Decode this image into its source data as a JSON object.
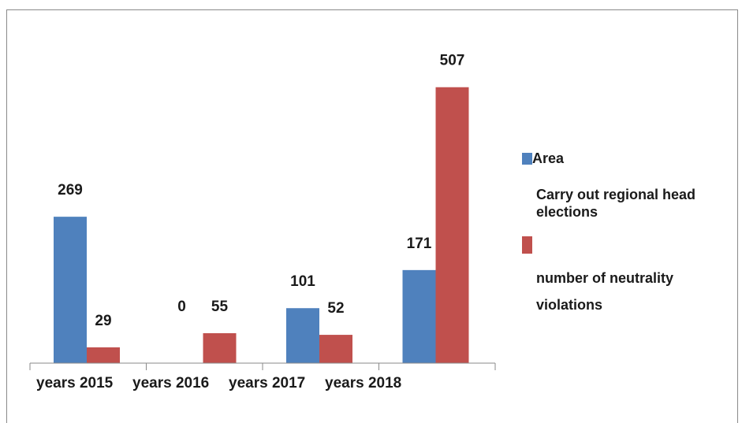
{
  "chart_data": {
    "type": "bar",
    "categories": [
      "years 2015",
      "years 2016",
      "years 2017",
      "years 2018"
    ],
    "series": [
      {
        "name": "Area",
        "values": [
          269,
          0,
          101,
          171
        ],
        "color": "#4f81bd"
      },
      {
        "name": "number of neutrality violations",
        "values": [
          29,
          55,
          52,
          507
        ],
        "color": "#c0504d"
      }
    ],
    "data_labels": [
      [
        "269",
        "0",
        "101",
        "171"
      ],
      [
        "29",
        "55",
        "52",
        "507"
      ]
    ],
    "legend_extra_text": "Carry out regional head elections",
    "ylim": [
      0,
      600
    ],
    "grid": false,
    "legend_position": "right"
  }
}
